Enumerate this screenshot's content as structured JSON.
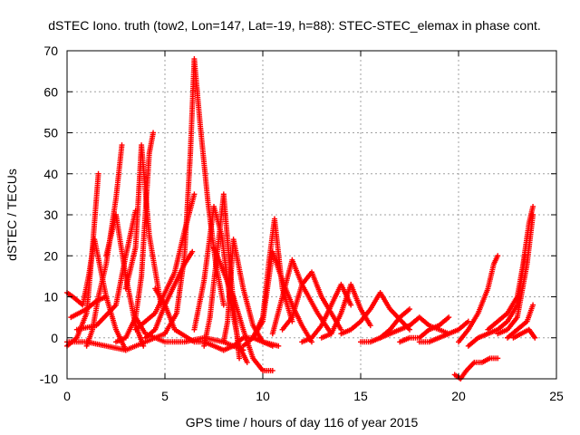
{
  "chart_data": {
    "type": "scatter",
    "title": "dSTEC Iono. truth (tow2, Lon=147, Lat=-19, h=88): STEC-STEC_elemax in phase cont.",
    "xlabel": "GPS time / hours of day 116 of year 2015",
    "ylabel": "dSTEC  / TECUs",
    "xlim": [
      0,
      25
    ],
    "ylim": [
      -10,
      70
    ],
    "xticks": [
      0,
      5,
      10,
      15,
      20,
      25
    ],
    "yticks": [
      -10,
      0,
      10,
      20,
      30,
      40,
      50,
      60,
      70
    ],
    "grid": true,
    "marker": "+",
    "color": "#ff0000",
    "series": [
      {
        "x": [
          0.0,
          0.5,
          1.0,
          1.3,
          1.6
        ],
        "y": [
          -2,
          0,
          6,
          22,
          40
        ]
      },
      {
        "x": [
          0.0,
          0.3,
          0.8,
          1.1,
          1.4,
          2.0,
          2.5,
          3.0
        ],
        "y": [
          11,
          10,
          8,
          15,
          24,
          10,
          2,
          -3
        ]
      },
      {
        "x": [
          1.0,
          1.3,
          1.6,
          2.0,
          2.5,
          2.8
        ],
        "y": [
          -2,
          2,
          10,
          18,
          34,
          47
        ]
      },
      {
        "x": [
          0.5,
          1.5,
          2.5,
          3.0,
          3.5
        ],
        "y": [
          2,
          3,
          8,
          20,
          31
        ]
      },
      {
        "x": [
          2.0,
          2.5,
          3.0,
          3.5,
          3.9
        ],
        "y": [
          20,
          30,
          15,
          3,
          -2
        ]
      },
      {
        "x": [
          2.5,
          3.0,
          3.5,
          3.8,
          4.0,
          4.2,
          4.4
        ],
        "y": [
          -1,
          0,
          5,
          15,
          30,
          45,
          50
        ]
      },
      {
        "x": [
          3.0,
          3.5,
          3.8,
          4.2,
          4.8
        ],
        "y": [
          12,
          22,
          47,
          25,
          8
        ]
      },
      {
        "x": [
          3.5,
          4.5,
          5.5,
          6.0,
          6.5
        ],
        "y": [
          2,
          6,
          16,
          26,
          35
        ]
      },
      {
        "x": [
          4.5,
          5.0,
          5.5,
          6.5,
          7.0,
          7.5,
          8.0
        ],
        "y": [
          12,
          8,
          2,
          -1,
          -1,
          -2,
          -3
        ]
      },
      {
        "x": [
          4.0,
          4.5,
          5.0,
          5.5,
          6.0,
          6.4
        ],
        "y": [
          0,
          2,
          8,
          13,
          18,
          21
        ]
      },
      {
        "x": [
          3.5,
          4.0,
          5.0,
          6.0,
          7.0,
          8.0,
          9.0
        ],
        "y": [
          5,
          1,
          -1,
          -1,
          0,
          -1,
          -3
        ]
      },
      {
        "x": [
          5.0,
          5.6,
          6.0,
          6.3,
          6.5,
          6.8,
          7.2,
          7.6,
          8.0
        ],
        "y": [
          1,
          6,
          20,
          45,
          68,
          52,
          33,
          18,
          8
        ]
      },
      {
        "x": [
          6.5,
          7.0,
          7.5,
          7.9,
          8.3,
          8.8,
          9.2
        ],
        "y": [
          2,
          14,
          32,
          25,
          10,
          -2,
          -6
        ]
      },
      {
        "x": [
          7.0,
          7.3,
          7.7,
          8.0,
          8.3,
          8.8
        ],
        "y": [
          -2,
          5,
          22,
          35,
          18,
          -5
        ]
      },
      {
        "x": [
          7.5,
          8.0,
          8.5,
          9.0,
          9.5,
          10.0,
          10.5
        ],
        "y": [
          22,
          16,
          10,
          2,
          -5,
          -8,
          -8
        ]
      },
      {
        "x": [
          8.0,
          8.5,
          9.0,
          9.5,
          10.0,
          10.5
        ],
        "y": [
          -3,
          -2,
          0,
          0,
          -1,
          -2
        ]
      },
      {
        "x": [
          8.0,
          8.2,
          8.5,
          9.0,
          9.5,
          10.0,
          10.8
        ],
        "y": [
          -1,
          4,
          24,
          12,
          3,
          -1,
          -2
        ]
      },
      {
        "x": [
          9.0,
          9.5,
          10.0,
          10.3,
          10.6,
          11.0,
          11.5
        ],
        "y": [
          -2,
          0,
          5,
          18,
          29,
          12,
          4
        ]
      },
      {
        "x": [
          9.5,
          10.0,
          10.5,
          11.0,
          11.5,
          12.0,
          12.5
        ],
        "y": [
          0,
          4,
          21,
          14,
          8,
          3,
          -1
        ]
      },
      {
        "x": [
          10.5,
          11.0,
          11.5,
          12.0,
          12.8,
          13.5
        ],
        "y": [
          1,
          10,
          19,
          13,
          6,
          1
        ]
      },
      {
        "x": [
          11.0,
          11.5,
          12.0,
          12.5,
          13.0,
          13.5,
          14.0
        ],
        "y": [
          2,
          5,
          13,
          16,
          10,
          6,
          2
        ]
      },
      {
        "x": [
          12.0,
          12.5,
          13.0,
          13.5,
          14.0,
          14.5
        ],
        "y": [
          -1,
          0,
          3,
          8,
          13,
          8
        ]
      },
      {
        "x": [
          13.0,
          13.5,
          14.0,
          14.5,
          15.0,
          15.5
        ],
        "y": [
          0,
          1,
          6,
          13,
          7,
          3
        ]
      },
      {
        "x": [
          14.0,
          14.5,
          15.0,
          15.5,
          16.0,
          16.5,
          17.5
        ],
        "y": [
          1,
          2,
          4,
          7,
          11,
          7,
          2
        ]
      },
      {
        "x": [
          15.0,
          15.5,
          16.0,
          16.5,
          17.0,
          17.5
        ],
        "y": [
          -1,
          -1,
          0,
          2,
          5,
          7
        ]
      },
      {
        "x": [
          16.0,
          16.5,
          17.0,
          17.5,
          18.0,
          18.5,
          19.5
        ],
        "y": [
          0,
          1,
          2,
          3,
          5,
          3,
          1
        ]
      },
      {
        "x": [
          17.0,
          17.5,
          18.0,
          18.5,
          19.0,
          19.5
        ],
        "y": [
          -1,
          0,
          0,
          2,
          3,
          5
        ]
      },
      {
        "x": [
          18.0,
          18.5,
          19.0,
          19.5,
          20.0,
          20.5
        ],
        "y": [
          -1,
          -1,
          0,
          1,
          2,
          4
        ]
      },
      {
        "x": [
          19.8,
          20.1,
          20.4,
          20.8,
          21.2,
          21.6,
          22.0
        ],
        "y": [
          -9,
          -10,
          -8,
          -6,
          -6,
          -5,
          -5
        ]
      },
      {
        "x": [
          20.0,
          20.5,
          21.0,
          21.5,
          21.8,
          22.0
        ],
        "y": [
          -1,
          2,
          6,
          12,
          18,
          20
        ]
      },
      {
        "x": [
          20.5,
          21.0,
          21.5,
          22.0,
          22.5,
          23.0,
          23.4
        ],
        "y": [
          -2,
          0,
          1,
          2,
          4,
          8,
          20
        ]
      },
      {
        "x": [
          21.5,
          22.0,
          22.5,
          23.0,
          23.3,
          23.6,
          23.8
        ],
        "y": [
          2,
          4,
          6,
          10,
          18,
          28,
          32
        ]
      },
      {
        "x": [
          22.0,
          22.5,
          23.0,
          23.5,
          23.8
        ],
        "y": [
          1,
          2,
          5,
          18,
          30
        ]
      },
      {
        "x": [
          22.5,
          23.0,
          23.5,
          23.8
        ],
        "y": [
          0,
          2,
          4,
          8
        ]
      },
      {
        "x": [
          22.8,
          23.2,
          23.6,
          23.9
        ],
        "y": [
          0,
          1,
          2,
          0
        ]
      },
      {
        "x": [
          0.0,
          1.0,
          2.0,
          3.0,
          4.0,
          5.0
        ],
        "y": [
          -1,
          -1,
          -2,
          -3,
          -1,
          1
        ]
      },
      {
        "x": [
          0.2,
          0.6,
          1.0,
          1.5,
          2.0
        ],
        "y": [
          5,
          6,
          7,
          9,
          10
        ]
      }
    ]
  }
}
